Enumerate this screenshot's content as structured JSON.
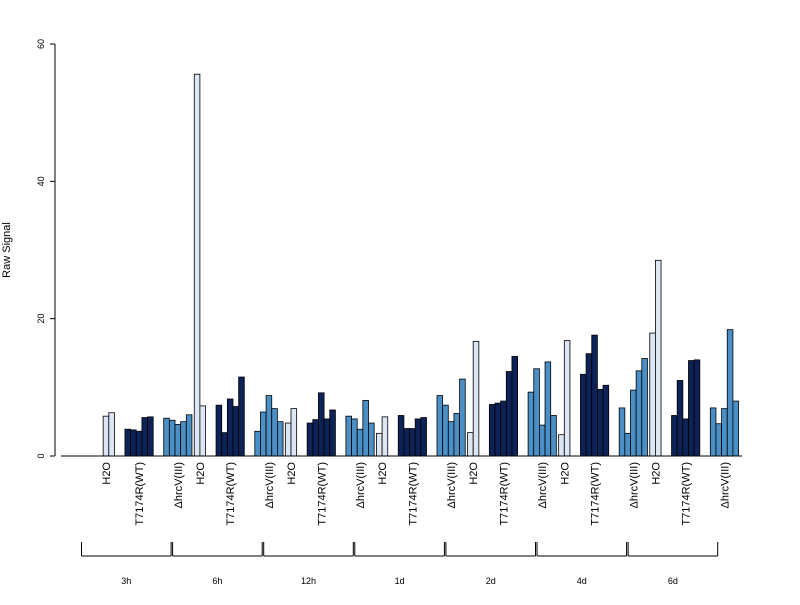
{
  "chart_data": {
    "type": "bar",
    "ylabel": "Raw Signal",
    "ylim": [
      0,
      60
    ],
    "yticks": [
      0,
      20,
      40,
      60
    ],
    "group_labels": [
      "H2O",
      "T7174R(WT)",
      "ΔhrcV(III)"
    ],
    "colors": {
      "H2O": "#dde7f3",
      "T7174R(WT)": "#0d2257",
      "ΔhrcV(III)": "#4a8fc6"
    },
    "timepoints": [
      {
        "label": "3h",
        "groups": [
          {
            "name": "H2O",
            "values": [
              0,
              5.8,
              6.3
            ]
          },
          {
            "name": "T7174R(WT)",
            "values": [
              3.9,
              3.8,
              3.6,
              5.6,
              5.7
            ]
          },
          {
            "name": "ΔhrcV(III)",
            "values": [
              5.5,
              5.2,
              4.6,
              5.0,
              6.0
            ]
          }
        ]
      },
      {
        "label": "6h",
        "groups": [
          {
            "name": "H2O",
            "values": [
              55.6,
              7.3
            ]
          },
          {
            "name": "T7174R(WT)",
            "values": [
              7.4,
              3.4,
              8.3,
              7.2,
              11.5
            ]
          },
          {
            "name": "ΔhrcV(III)",
            "values": [
              3.6,
              6.4,
              8.8,
              6.9,
              5.0
            ]
          }
        ]
      },
      {
        "label": "12h",
        "groups": [
          {
            "name": "H2O",
            "values": [
              4.8,
              6.9
            ]
          },
          {
            "name": "T7174R(WT)",
            "values": [
              4.8,
              5.3,
              9.2,
              5.4,
              6.7
            ]
          },
          {
            "name": "ΔhrcV(III)",
            "values": [
              5.8,
              5.4,
              3.9,
              8.1,
              4.8
            ]
          }
        ]
      },
      {
        "label": "1d",
        "groups": [
          {
            "name": "H2O",
            "values": [
              3.3,
              5.7
            ]
          },
          {
            "name": "T7174R(WT)",
            "values": [
              5.9,
              4.0,
              4.0,
              5.4,
              5.6
            ]
          },
          {
            "name": "ΔhrcV(III)",
            "values": [
              8.8,
              7.4,
              5.0,
              6.2,
              11.2
            ]
          }
        ]
      },
      {
        "label": "2d",
        "groups": [
          {
            "name": "H2O",
            "values": [
              3.4,
              16.7
            ]
          },
          {
            "name": "T7174R(WT)",
            "values": [
              7.5,
              7.7,
              8.0,
              12.3,
              14.5
            ]
          },
          {
            "name": "ΔhrcV(III)",
            "values": [
              9.3,
              12.7,
              4.5,
              13.7,
              5.9
            ]
          }
        ]
      },
      {
        "label": "4d",
        "groups": [
          {
            "name": "H2O",
            "values": [
              3.1,
              16.8
            ]
          },
          {
            "name": "T7174R(WT)",
            "values": [
              11.9,
              14.9,
              17.6,
              9.7,
              10.3
            ]
          },
          {
            "name": "ΔhrcV(III)",
            "values": [
              7.0,
              3.3,
              9.6,
              12.4,
              14.2
            ]
          }
        ]
      },
      {
        "label": "6d",
        "groups": [
          {
            "name": "H2O",
            "values": [
              17.9,
              28.5
            ]
          },
          {
            "name": "T7174R(WT)",
            "values": [
              5.9,
              11.0,
              5.4,
              13.9,
              14.0
            ]
          },
          {
            "name": "ΔhrcV(III)",
            "values": [
              7.0,
              4.7,
              6.9,
              18.4,
              8.0
            ]
          }
        ]
      }
    ]
  }
}
